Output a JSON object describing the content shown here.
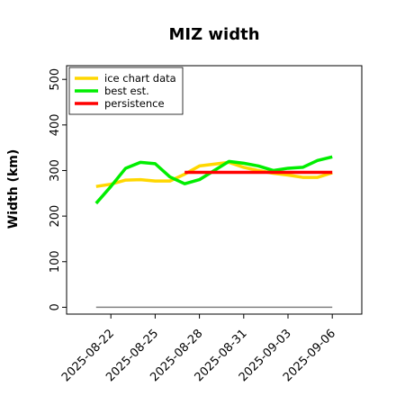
{
  "chart_data": {
    "type": "line",
    "title": "MIZ width",
    "xlabel": "",
    "ylabel": "Width (km)",
    "x_ticks": [
      "2025-08-22",
      "2025-08-25",
      "2025-08-28",
      "2025-08-31",
      "2025-09-03",
      "2025-09-06"
    ],
    "xlim": [
      "2025-08-19",
      "2025-09-08"
    ],
    "yticks": [
      0,
      100,
      200,
      300,
      400,
      500
    ],
    "ylim": [
      -15,
      530
    ],
    "grid": false,
    "legend_position": "upper-left",
    "series": [
      {
        "name": "ice chart data",
        "color": "#ffd700",
        "x": [
          "2025-08-21",
          "2025-08-22",
          "2025-08-23",
          "2025-08-24",
          "2025-08-25",
          "2025-08-26",
          "2025-08-27",
          "2025-08-28",
          "2025-08-29",
          "2025-08-30",
          "2025-08-31",
          "2025-09-01",
          "2025-09-02",
          "2025-09-03",
          "2025-09-04",
          "2025-09-05",
          "2025-09-06"
        ],
        "values": [
          265,
          270,
          279,
          280,
          277,
          277,
          292,
          310,
          314,
          318,
          307,
          300,
          294,
          290,
          285,
          285,
          295
        ]
      },
      {
        "name": "best est.",
        "color": "#00ee00",
        "x": [
          "2025-08-21",
          "2025-08-22",
          "2025-08-23",
          "2025-08-24",
          "2025-08-25",
          "2025-08-26",
          "2025-08-27",
          "2025-08-28",
          "2025-08-29",
          "2025-08-30",
          "2025-08-31",
          "2025-09-01",
          "2025-09-02",
          "2025-09-03",
          "2025-09-04",
          "2025-09-05",
          "2025-09-06"
        ],
        "values": [
          228,
          265,
          305,
          318,
          315,
          286,
          271,
          280,
          300,
          320,
          316,
          310,
          300,
          305,
          307,
          322,
          330
        ]
      },
      {
        "name": "persistence",
        "color": "#ff0000",
        "x": [
          "2025-08-27",
          "2025-09-06"
        ],
        "values": [
          296,
          296
        ]
      }
    ],
    "baseline": {
      "color": "#808080",
      "x": [
        "2025-08-21",
        "2025-09-06"
      ],
      "values": [
        0,
        0
      ]
    }
  }
}
